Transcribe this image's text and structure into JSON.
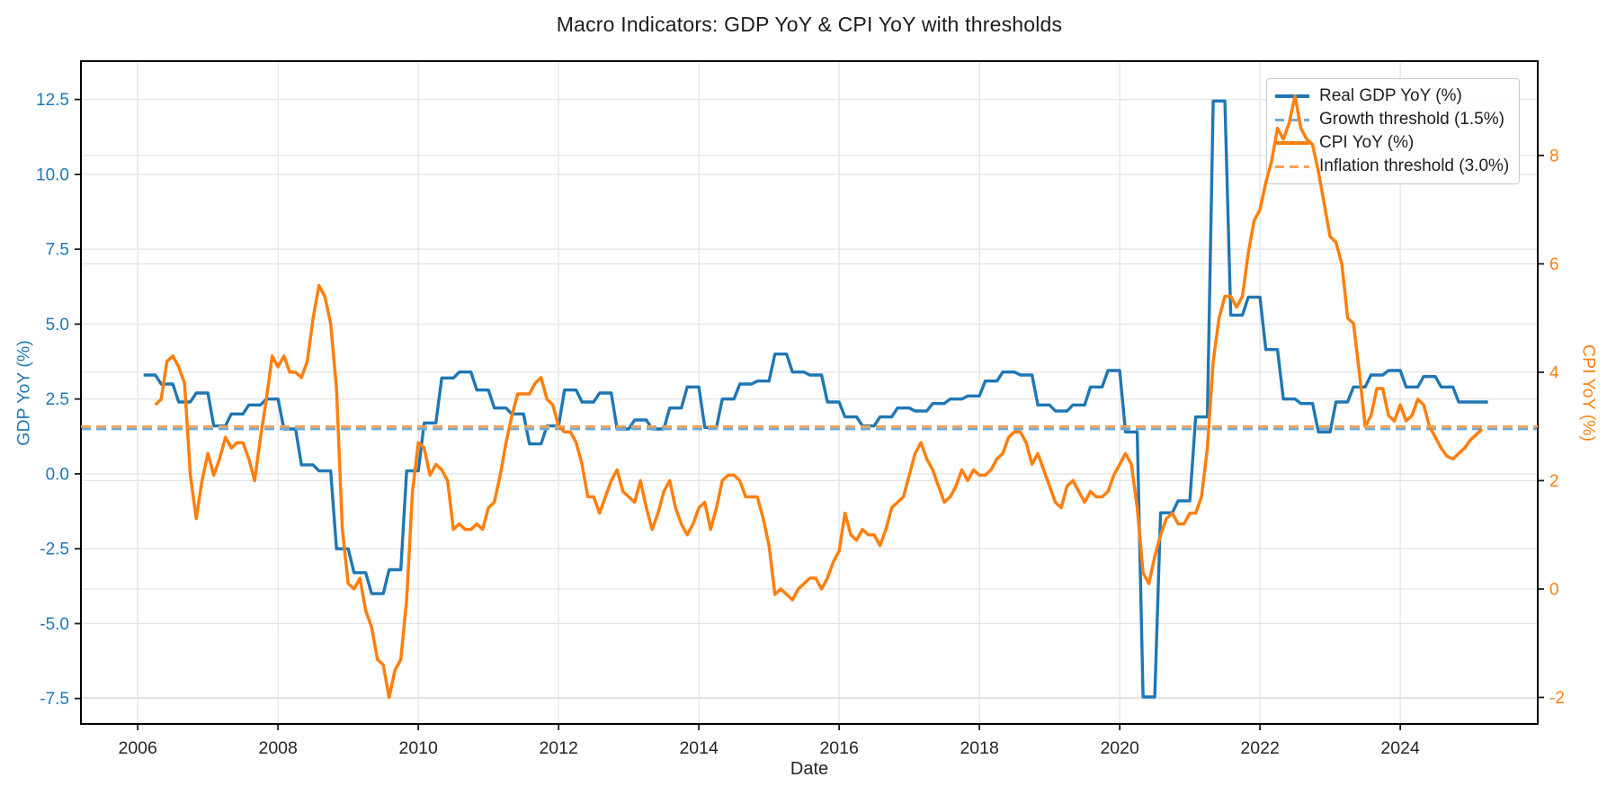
{
  "title": "Macro Indicators: GDP YoY & CPI YoY with thresholds",
  "chart_data": {
    "type": "line",
    "title": "Macro Indicators: GDP YoY & CPI YoY with thresholds",
    "xlabel": "Date",
    "ylabel_left": "GDP YoY (%)",
    "ylabel_right": "CPI YoY (%)",
    "xlim": [
      2005.19,
      2025.96
    ],
    "ylim_left": [
      -8.35,
      13.78
    ],
    "ylim_right": [
      -2.49,
      9.74
    ],
    "x_ticks": [
      2006,
      2008,
      2010,
      2012,
      2014,
      2016,
      2018,
      2020,
      2022,
      2024
    ],
    "x_tick_labels": [
      "2006",
      "2008",
      "2010",
      "2012",
      "2014",
      "2016",
      "2018",
      "2020",
      "2022",
      "2024"
    ],
    "y_ticks_left": [
      12.5,
      10.0,
      7.5,
      5.0,
      2.5,
      0.0,
      -2.5,
      -5.0,
      -7.5
    ],
    "y_tick_labels_left": [
      "12.5",
      "10.0",
      "7.5",
      "5.0",
      "2.5",
      "0.0",
      "-2.5",
      "-5.0",
      "-7.5"
    ],
    "y_ticks_right": [
      8,
      6,
      4,
      2,
      0,
      -2
    ],
    "y_tick_labels_right": [
      "8",
      "6",
      "4",
      "2",
      "0",
      "-2"
    ],
    "grid": "both axes, light gray",
    "legend_position": "upper right",
    "legend": [
      {
        "label": "Real GDP YoY (%)",
        "color": "#1f77b4",
        "dash": false
      },
      {
        "label": "Growth threshold (1.5%)",
        "color": "#72aad4",
        "dash": true
      },
      {
        "label": "CPI YoY (%)",
        "color": "#ff7f0e",
        "dash": false
      },
      {
        "label": "Inflation threshold (3.0%)",
        "color": "#ffa050",
        "dash": true
      }
    ],
    "thresholds": {
      "growth": {
        "label": "Growth threshold (1.5%)",
        "value": 1.5,
        "axis": "left",
        "color": "#72aad4"
      },
      "inflation": {
        "label": "Inflation threshold (3.0%)",
        "value": 3.0,
        "axis": "right",
        "color": "#ffa050"
      }
    },
    "series": {
      "gdp": {
        "name": "Real GDP YoY (%)",
        "axis": "left",
        "color": "#1f77b4",
        "frequency": "quarterly",
        "start": "2006Q1",
        "start_year": 2006,
        "plotted_as": "quarterly value held for 3 months (step look)",
        "values": [
          3.3,
          3.0,
          2.4,
          2.7,
          1.6,
          2.0,
          2.3,
          2.5,
          1.5,
          0.3,
          0.1,
          -2.5,
          -3.3,
          -4.0,
          -3.2,
          0.1,
          1.7,
          3.2,
          3.4,
          2.8,
          2.2,
          2.0,
          1.0,
          1.6,
          2.8,
          2.4,
          2.7,
          1.5,
          1.8,
          1.5,
          2.2,
          2.9,
          1.55,
          2.5,
          3.0,
          3.1,
          4.0,
          3.4,
          3.3,
          2.4,
          1.9,
          1.6,
          1.9,
          2.2,
          2.1,
          2.35,
          2.5,
          2.6,
          3.1,
          3.4,
          3.3,
          2.3,
          2.1,
          2.3,
          2.9,
          3.45,
          1.4,
          -7.45,
          -1.3,
          -0.9,
          1.9,
          12.45,
          5.3,
          5.9,
          4.15,
          2.5,
          2.35,
          1.4,
          2.4,
          2.9,
          3.3,
          3.45,
          2.9,
          3.25,
          2.9,
          2.4,
          2.4
        ]
      },
      "cpi": {
        "name": "CPI YoY (%)",
        "axis": "right",
        "color": "#ff7f0e",
        "frequency": "monthly",
        "start": "2006-03",
        "start_year": 2006,
        "start_month": 3,
        "values": [
          3.4,
          3.5,
          4.2,
          4.3,
          4.1,
          3.8,
          2.1,
          1.3,
          2.0,
          2.5,
          2.1,
          2.4,
          2.8,
          2.6,
          2.7,
          2.7,
          2.4,
          2.0,
          2.8,
          3.5,
          4.3,
          4.1,
          4.3,
          4.0,
          4.0,
          3.9,
          4.2,
          5.0,
          5.6,
          5.4,
          4.9,
          3.7,
          1.1,
          0.1,
          0.0,
          0.2,
          -0.4,
          -0.7,
          -1.3,
          -1.4,
          -2.0,
          -1.5,
          -1.3,
          -0.2,
          1.8,
          2.7,
          2.6,
          2.1,
          2.3,
          2.2,
          2.0,
          1.1,
          1.2,
          1.1,
          1.1,
          1.2,
          1.1,
          1.5,
          1.6,
          2.1,
          2.7,
          3.2,
          3.6,
          3.6,
          3.6,
          3.8,
          3.9,
          3.5,
          3.4,
          3.0,
          2.9,
          2.9,
          2.7,
          2.3,
          1.7,
          1.7,
          1.4,
          1.7,
          2.0,
          2.2,
          1.8,
          1.7,
          1.6,
          2.0,
          1.5,
          1.1,
          1.4,
          1.8,
          2.0,
          1.5,
          1.2,
          1.0,
          1.2,
          1.5,
          1.6,
          1.1,
          1.5,
          2.0,
          2.1,
          2.1,
          2.0,
          1.7,
          1.7,
          1.7,
          1.3,
          0.8,
          -0.1,
          0.0,
          -0.1,
          -0.2,
          0.0,
          0.1,
          0.2,
          0.2,
          0.0,
          0.2,
          0.5,
          0.7,
          1.4,
          1.0,
          0.9,
          1.1,
          1.0,
          1.0,
          0.8,
          1.1,
          1.5,
          1.6,
          1.7,
          2.1,
          2.5,
          2.7,
          2.4,
          2.2,
          1.9,
          1.6,
          1.7,
          1.9,
          2.2,
          2.0,
          2.2,
          2.1,
          2.1,
          2.2,
          2.4,
          2.5,
          2.8,
          2.9,
          2.9,
          2.7,
          2.3,
          2.5,
          2.2,
          1.9,
          1.6,
          1.5,
          1.9,
          2.0,
          1.8,
          1.6,
          1.8,
          1.7,
          1.7,
          1.8,
          2.1,
          2.3,
          2.5,
          2.3,
          1.5,
          0.3,
          0.1,
          0.6,
          1.0,
          1.3,
          1.4,
          1.2,
          1.2,
          1.4,
          1.4,
          1.7,
          2.6,
          4.2,
          5.0,
          5.4,
          5.4,
          5.2,
          5.4,
          6.2,
          6.8,
          7.0,
          7.5,
          7.9,
          8.5,
          8.3,
          8.6,
          9.1,
          8.5,
          8.3,
          8.2,
          7.7,
          7.1,
          6.5,
          6.4,
          6.0,
          5.0,
          4.9,
          4.0,
          3.0,
          3.2,
          3.7,
          3.7,
          3.2,
          3.1,
          3.4,
          3.1,
          3.2,
          3.5,
          3.4,
          3.0,
          2.8,
          2.6,
          2.45,
          2.4,
          2.5,
          2.6,
          2.75,
          2.85,
          2.95
        ]
      }
    }
  }
}
